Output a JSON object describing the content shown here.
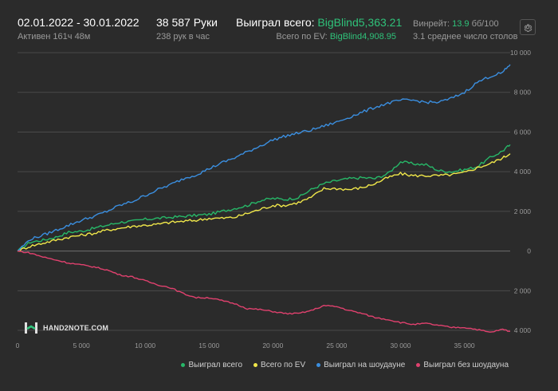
{
  "header": {
    "date_range": "02.01.2022 - 30.01.2022",
    "active_time": "Активен 161ч 48м",
    "hands": "38 587 Руки",
    "hands_per_hour": "238 рук в час",
    "won_total_label": "Выиграл всего: ",
    "won_total_value": "BigBlind5,363.21",
    "ev_total_label": "Всего по EV: ",
    "ev_total_value": "BigBlind4,908.95",
    "winrate_label": "Винрейт: ",
    "winrate_value": "13.9",
    "winrate_unit": " бб/100",
    "avg_tables": "3.1 среднее число столов"
  },
  "colors": {
    "background": "#2b2b2b",
    "grid": "#4a4a4a",
    "accent_green": "#2fc27a",
    "won_total": "#27b868",
    "ev": "#f0e74a",
    "showdown": "#3b8fe0",
    "non_showdown": "#e0416e"
  },
  "logo": {
    "text": "HAND2NOTE.COM",
    "icon": "h2n-logo-icon"
  },
  "settings_icon": "gear-icon",
  "chart_data": {
    "type": "line",
    "xlabel": "",
    "ylabel": "",
    "xlim": [
      0,
      38587
    ],
    "ylim": [
      -4400,
      10000
    ],
    "grid": true,
    "legend_position": "bottom-right",
    "x_ticks": [
      0,
      5000,
      10000,
      15000,
      20000,
      25000,
      30000,
      35000
    ],
    "x_tick_labels": [
      "0",
      "5 000",
      "10 000",
      "15 000",
      "20 000",
      "25 000",
      "30 000",
      "35 000"
    ],
    "y_ticks": [
      10000,
      8000,
      6000,
      4000,
      2000,
      0,
      -2000,
      -4000
    ],
    "y_tick_labels": [
      "10 000",
      "8 000",
      "6 000",
      "4 000",
      "2 000",
      "0",
      "2 000",
      "4 000"
    ],
    "series": [
      {
        "name": "Выиграл всего",
        "color": "#27b868",
        "x": [
          0,
          1000,
          2000,
          3000,
          4000,
          5000,
          6000,
          7000,
          8000,
          9000,
          10000,
          11000,
          12000,
          13000,
          14000,
          15000,
          16000,
          17000,
          18000,
          19000,
          20000,
          21000,
          22000,
          23000,
          24000,
          25000,
          26000,
          27000,
          28000,
          29000,
          30000,
          31000,
          32000,
          33000,
          34000,
          35000,
          36000,
          37000,
          38000,
          38587
        ],
        "values": [
          0,
          450,
          550,
          700,
          950,
          1000,
          1150,
          1300,
          1450,
          1500,
          1600,
          1650,
          1700,
          1750,
          1800,
          1850,
          2000,
          2150,
          2300,
          2550,
          2650,
          2600,
          2700,
          3100,
          3400,
          3550,
          3650,
          3700,
          3650,
          3900,
          4500,
          4400,
          4350,
          4050,
          4000,
          4100,
          4250,
          4700,
          5050,
          5363
        ]
      },
      {
        "name": "Всего по EV",
        "color": "#f0e74a",
        "x": [
          0,
          1000,
          2000,
          3000,
          4000,
          5000,
          6000,
          7000,
          8000,
          9000,
          10000,
          11000,
          12000,
          13000,
          14000,
          15000,
          16000,
          17000,
          18000,
          19000,
          20000,
          21000,
          22000,
          23000,
          24000,
          25000,
          26000,
          27000,
          28000,
          29000,
          30000,
          31000,
          32000,
          33000,
          34000,
          35000,
          36000,
          37000,
          38000,
          38587
        ],
        "values": [
          0,
          250,
          400,
          550,
          700,
          800,
          900,
          1050,
          1150,
          1250,
          1300,
          1350,
          1450,
          1500,
          1550,
          1650,
          1650,
          1700,
          1900,
          2100,
          2300,
          2300,
          2450,
          2700,
          3150,
          3150,
          3100,
          3200,
          3400,
          3700,
          3900,
          3800,
          3800,
          3800,
          3850,
          3950,
          4200,
          4400,
          4700,
          4909
        ]
      },
      {
        "name": "Выиграл на шоудауне",
        "color": "#3b8fe0",
        "x": [
          0,
          1000,
          2000,
          3000,
          4000,
          5000,
          6000,
          7000,
          8000,
          9000,
          10000,
          11000,
          12000,
          13000,
          14000,
          15000,
          16000,
          17000,
          18000,
          19000,
          20000,
          21000,
          22000,
          23000,
          24000,
          25000,
          26000,
          27000,
          28000,
          29000,
          30000,
          31000,
          32000,
          33000,
          34000,
          35000,
          36000,
          37000,
          38000,
          38587
        ],
        "values": [
          0,
          600,
          800,
          1050,
          1300,
          1550,
          1750,
          2000,
          2300,
          2500,
          2800,
          3100,
          3350,
          3650,
          3850,
          4150,
          4450,
          4700,
          5000,
          5300,
          5600,
          5800,
          5950,
          6100,
          6300,
          6500,
          6750,
          7000,
          7250,
          7450,
          7600,
          7600,
          7500,
          7500,
          7700,
          8000,
          8500,
          8800,
          9000,
          9400
        ]
      },
      {
        "name": "Выиграл без шоудауна",
        "color": "#e0416e",
        "x": [
          0,
          1000,
          2000,
          3000,
          4000,
          5000,
          6000,
          7000,
          8000,
          9000,
          10000,
          11000,
          12000,
          13000,
          14000,
          15000,
          16000,
          17000,
          18000,
          19000,
          20000,
          21000,
          22000,
          23000,
          24000,
          25000,
          26000,
          27000,
          28000,
          29000,
          30000,
          31000,
          32000,
          33000,
          34000,
          35000,
          36000,
          37000,
          38000,
          38587
        ],
        "values": [
          0,
          -100,
          -300,
          -450,
          -600,
          -700,
          -800,
          -950,
          -1200,
          -1300,
          -1500,
          -1700,
          -1850,
          -2150,
          -2350,
          -2350,
          -2500,
          -2650,
          -2900,
          -2950,
          -3050,
          -3150,
          -3150,
          -3000,
          -2750,
          -2800,
          -3000,
          -3150,
          -3350,
          -3450,
          -3600,
          -3700,
          -3650,
          -3750,
          -3850,
          -3850,
          -3950,
          -4100,
          -3950,
          -4050
        ]
      }
    ]
  }
}
